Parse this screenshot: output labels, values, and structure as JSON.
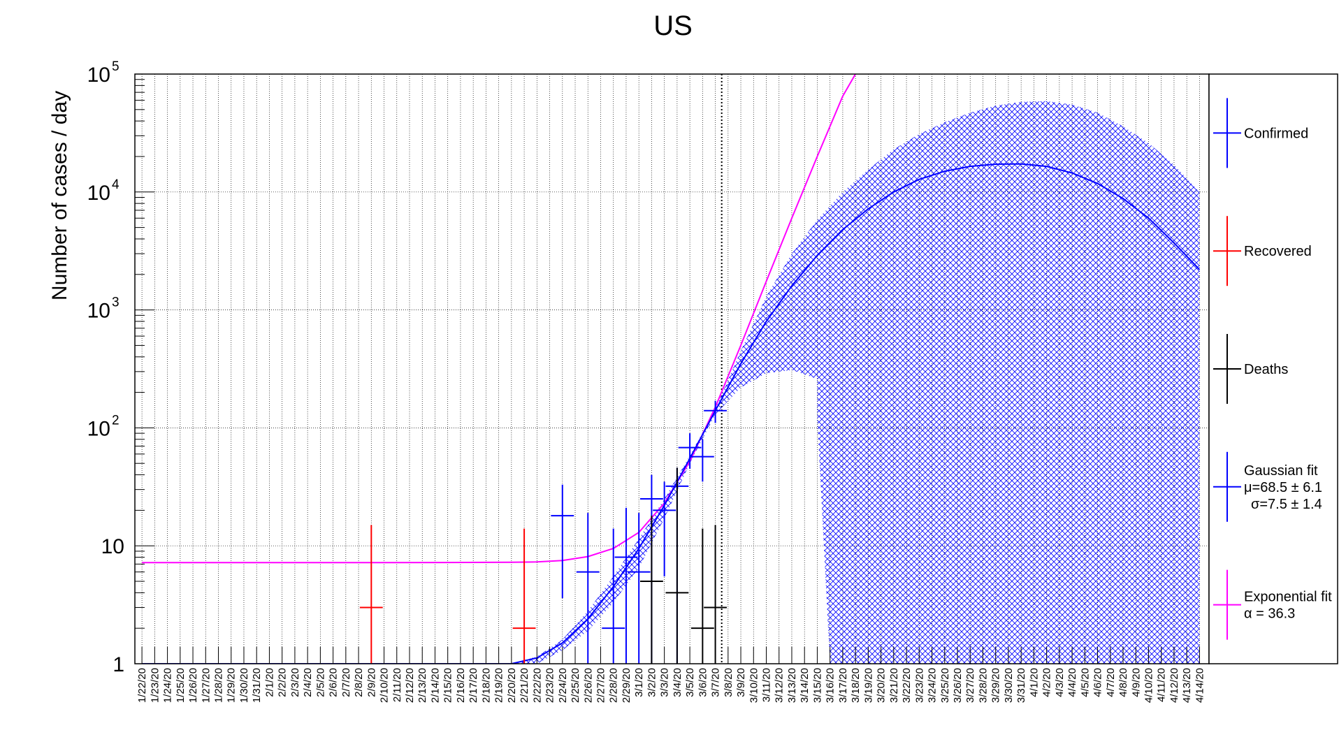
{
  "chart_data": {
    "type": "scatter",
    "title": "US",
    "ylabel": "Number of cases / day",
    "y_scale": "log",
    "ylim": [
      1,
      100000
    ],
    "y_ticks": [
      {
        "mant": "1",
        "exp": ""
      },
      {
        "mant": "10",
        "exp": ""
      },
      {
        "mant": "10",
        "exp": "2"
      },
      {
        "mant": "10",
        "exp": "3"
      },
      {
        "mant": "10",
        "exp": "4"
      },
      {
        "mant": "10",
        "exp": "5"
      }
    ],
    "grid": true,
    "legend_position": "right",
    "reference_line_x": "3/7/20",
    "categories": [
      "1/22/20",
      "1/23/20",
      "1/24/20",
      "1/25/20",
      "1/26/20",
      "1/27/20",
      "1/28/20",
      "1/29/20",
      "1/30/20",
      "1/31/20",
      "2/1/20",
      "2/2/20",
      "2/3/20",
      "2/4/20",
      "2/5/20",
      "2/6/20",
      "2/7/20",
      "2/8/20",
      "2/9/20",
      "2/10/20",
      "2/11/20",
      "2/12/20",
      "2/13/20",
      "2/14/20",
      "2/15/20",
      "2/16/20",
      "2/17/20",
      "2/18/20",
      "2/19/20",
      "2/20/20",
      "2/21/20",
      "2/22/20",
      "2/23/20",
      "2/24/20",
      "2/25/20",
      "2/26/20",
      "2/27/20",
      "2/28/20",
      "2/29/20",
      "3/1/20",
      "3/2/20",
      "3/3/20",
      "3/4/20",
      "3/5/20",
      "3/6/20",
      "3/7/20",
      "3/8/20",
      "3/9/20",
      "3/10/20",
      "3/11/20",
      "3/12/20",
      "3/13/20",
      "3/14/20",
      "3/15/20",
      "3/16/20",
      "3/17/20",
      "3/18/20",
      "3/19/20",
      "3/20/20",
      "3/21/20",
      "3/22/20",
      "3/23/20",
      "3/24/20",
      "3/25/20",
      "3/26/20",
      "3/27/20",
      "3/28/20",
      "3/29/20",
      "3/30/20",
      "3/31/20",
      "4/1/20",
      "4/2/20",
      "4/3/20",
      "4/4/20",
      "4/5/20",
      "4/6/20",
      "4/7/20",
      "4/8/20",
      "4/9/20",
      "4/10/20",
      "4/11/20",
      "4/12/20",
      "4/13/20",
      "4/14/20"
    ],
    "series": [
      {
        "name": "Confirmed",
        "color": "#0000ff",
        "points": [
          {
            "x": "2/24/20",
            "y": 18,
            "lo": 3.6,
            "hi": 33
          },
          {
            "x": "2/26/20",
            "y": 6,
            "lo": 1,
            "hi": 19
          },
          {
            "x": "2/28/20",
            "y": 2,
            "lo": 1,
            "hi": 14
          },
          {
            "x": "2/29/20",
            "y": 8,
            "lo": 1,
            "hi": 21
          },
          {
            "x": "3/1/20",
            "y": 6,
            "lo": 1,
            "hi": 19
          },
          {
            "x": "3/2/20",
            "y": 25,
            "lo": 1,
            "hi": 40
          },
          {
            "x": "3/3/20",
            "y": 20,
            "lo": 5.5,
            "hi": 35
          },
          {
            "x": "3/4/20",
            "y": 32,
            "lo": 1,
            "hi": 46
          },
          {
            "x": "3/5/20",
            "y": 68,
            "lo": 45,
            "hi": 90
          },
          {
            "x": "3/6/20",
            "y": 57,
            "lo": 35,
            "hi": 80
          },
          {
            "x": "3/7/20",
            "y": 140,
            "lo": 110,
            "hi": 170
          }
        ]
      },
      {
        "name": "Recovered",
        "color": "#ff0000",
        "points": [
          {
            "x": "2/9/20",
            "y": 3,
            "lo": 1,
            "hi": 15
          },
          {
            "x": "2/21/20",
            "y": 2,
            "lo": 1,
            "hi": 14
          }
        ]
      },
      {
        "name": "Deaths",
        "color": "#000000",
        "points": [
          {
            "x": "3/2/20",
            "y": 5,
            "lo": 1,
            "hi": 18
          },
          {
            "x": "3/4/20",
            "y": 4,
            "lo": 1,
            "hi": 46
          },
          {
            "x": "3/6/20",
            "y": 2,
            "lo": 1,
            "hi": 14
          },
          {
            "x": "3/7/20",
            "y": 3,
            "lo": 1,
            "hi": 15
          }
        ]
      }
    ],
    "gaussian_curve": {
      "color": "#0000ff",
      "points": [
        [
          "2/20/20",
          1
        ],
        [
          "2/22/20",
          1.12
        ],
        [
          "2/24/20",
          1.5
        ],
        [
          "2/26/20",
          2.4
        ],
        [
          "2/28/20",
          4.5
        ],
        [
          "3/1/20",
          9.5
        ],
        [
          "3/3/20",
          22
        ],
        [
          "3/5/20",
          55
        ],
        [
          "3/7/20",
          140
        ],
        [
          "3/9/20",
          350
        ],
        [
          "3/11/20",
          800
        ],
        [
          "3/13/20",
          1600
        ],
        [
          "3/15/20",
          2900
        ],
        [
          "3/17/20",
          4800
        ],
        [
          "3/19/20",
          7200
        ],
        [
          "3/21/20",
          10000
        ],
        [
          "3/23/20",
          12800
        ],
        [
          "3/25/20",
          15000
        ],
        [
          "3/27/20",
          16500
        ],
        [
          "3/29/20",
          17200
        ],
        [
          "3/31/20",
          17300
        ],
        [
          "4/2/20",
          16500
        ],
        [
          "4/4/20",
          14500
        ],
        [
          "4/6/20",
          11800
        ],
        [
          "4/8/20",
          8800
        ],
        [
          "4/10/20",
          6000
        ],
        [
          "4/12/20",
          3700
        ],
        [
          "4/14/20",
          2200
        ]
      ]
    },
    "gaussian_band": {
      "color": "#0000ff",
      "upper": [
        [
          "2/20/20",
          1
        ],
        [
          "2/22/20",
          1.15
        ],
        [
          "2/24/20",
          1.6
        ],
        [
          "2/26/20",
          2.8
        ],
        [
          "2/28/20",
          5.5
        ],
        [
          "3/1/20",
          11.5
        ],
        [
          "3/3/20",
          25
        ],
        [
          "3/5/20",
          58
        ],
        [
          "3/7/20",
          145
        ],
        [
          "3/9/20",
          450
        ],
        [
          "3/11/20",
          1300
        ],
        [
          "3/13/20",
          3000
        ],
        [
          "3/15/20",
          5800
        ],
        [
          "3/17/20",
          10000
        ],
        [
          "3/19/20",
          15500
        ],
        [
          "3/21/20",
          23000
        ],
        [
          "3/23/20",
          31000
        ],
        [
          "3/25/20",
          39000
        ],
        [
          "3/27/20",
          47000
        ],
        [
          "3/29/20",
          54000
        ],
        [
          "3/31/20",
          58000
        ],
        [
          "4/2/20",
          59000
        ],
        [
          "4/4/20",
          55000
        ],
        [
          "4/6/20",
          47000
        ],
        [
          "4/8/20",
          36000
        ],
        [
          "4/10/20",
          26000
        ],
        [
          "4/12/20",
          17000
        ],
        [
          "4/14/20",
          10000
        ]
      ],
      "lower": [
        [
          "2/20/20",
          1
        ],
        [
          "2/22/20",
          1
        ],
        [
          "2/24/20",
          1.3
        ],
        [
          "2/26/20",
          1.9
        ],
        [
          "2/28/20",
          3.3
        ],
        [
          "3/1/20",
          6.5
        ],
        [
          "3/3/20",
          17
        ],
        [
          "3/5/20",
          50
        ],
        [
          "3/7/20",
          130
        ],
        [
          "3/9/20",
          220
        ],
        [
          "3/11/20",
          290
        ],
        [
          "3/13/20",
          310
        ],
        [
          "3/15/20",
          260
        ],
        [
          "3/15/20",
          120
        ],
        [
          "3/16/20",
          1
        ]
      ]
    },
    "exponential_curve": {
      "color": "#ff00ff",
      "points": [
        [
          "1/22/20",
          7.2
        ],
        [
          "2/10/20",
          7.2
        ],
        [
          "2/20/20",
          7.25
        ],
        [
          "2/22/20",
          7.3
        ],
        [
          "2/24/20",
          7.5
        ],
        [
          "2/26/20",
          8.1
        ],
        [
          "2/28/20",
          9.5
        ],
        [
          "3/1/20",
          13
        ],
        [
          "3/3/20",
          23
        ],
        [
          "3/5/20",
          52
        ],
        [
          "3/7/20",
          150
        ],
        [
          "3/9/20",
          500
        ],
        [
          "3/11/20",
          1750
        ],
        [
          "3/13/20",
          6000
        ],
        [
          "3/15/20",
          20000
        ],
        [
          "3/17/20",
          65000
        ],
        [
          "3/18/20",
          100000
        ]
      ]
    },
    "legend": [
      {
        "name": "Confirmed",
        "color": "#0000ff",
        "lines": [
          "Confirmed"
        ]
      },
      {
        "name": "Recovered",
        "color": "#ff0000",
        "lines": [
          "Recovered"
        ]
      },
      {
        "name": "Deaths",
        "color": "#000000",
        "lines": [
          "Deaths"
        ]
      },
      {
        "name": "Gaussian fit",
        "color": "#0000ff",
        "lines": [
          "Gaussian fit",
          "μ=68.5 ± 6.1",
          "σ=7.5 ± 1.4"
        ]
      },
      {
        "name": "Exponential fit",
        "color": "#ff00ff",
        "lines": [
          "Exponential fit",
          "α = 36.3"
        ]
      }
    ]
  }
}
